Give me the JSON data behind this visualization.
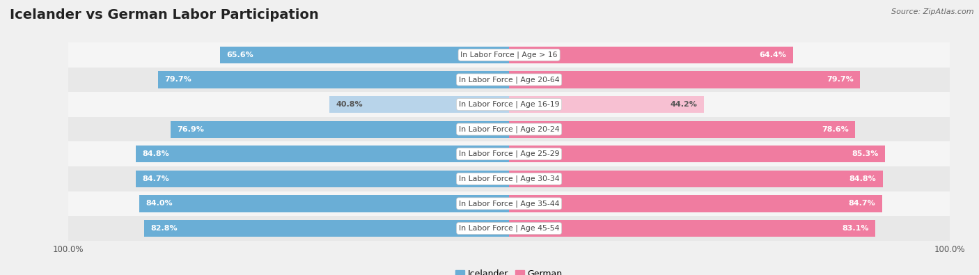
{
  "title": "Icelander vs German Labor Participation",
  "source": "Source: ZipAtlas.com",
  "categories": [
    "In Labor Force | Age > 16",
    "In Labor Force | Age 20-64",
    "In Labor Force | Age 16-19",
    "In Labor Force | Age 20-24",
    "In Labor Force | Age 25-29",
    "In Labor Force | Age 30-34",
    "In Labor Force | Age 35-44",
    "In Labor Force | Age 45-54"
  ],
  "icelander_values": [
    65.6,
    79.7,
    40.8,
    76.9,
    84.8,
    84.7,
    84.0,
    82.8
  ],
  "german_values": [
    64.4,
    79.7,
    44.2,
    78.6,
    85.3,
    84.8,
    84.7,
    83.1
  ],
  "icelander_color_strong": "#6aaed6",
  "icelander_color_light": "#b8d4ea",
  "german_color_strong": "#f07ca0",
  "german_color_light": "#f7c0d2",
  "bar_height": 0.68,
  "bg_color": "#f0f0f0",
  "row_bg_even": "#e8e8e8",
  "row_bg_odd": "#f5f5f5",
  "title_fontsize": 14,
  "source_fontsize": 8,
  "max_val": 100.0,
  "legend_labels": [
    "Icelander",
    "German"
  ],
  "threshold": 55
}
